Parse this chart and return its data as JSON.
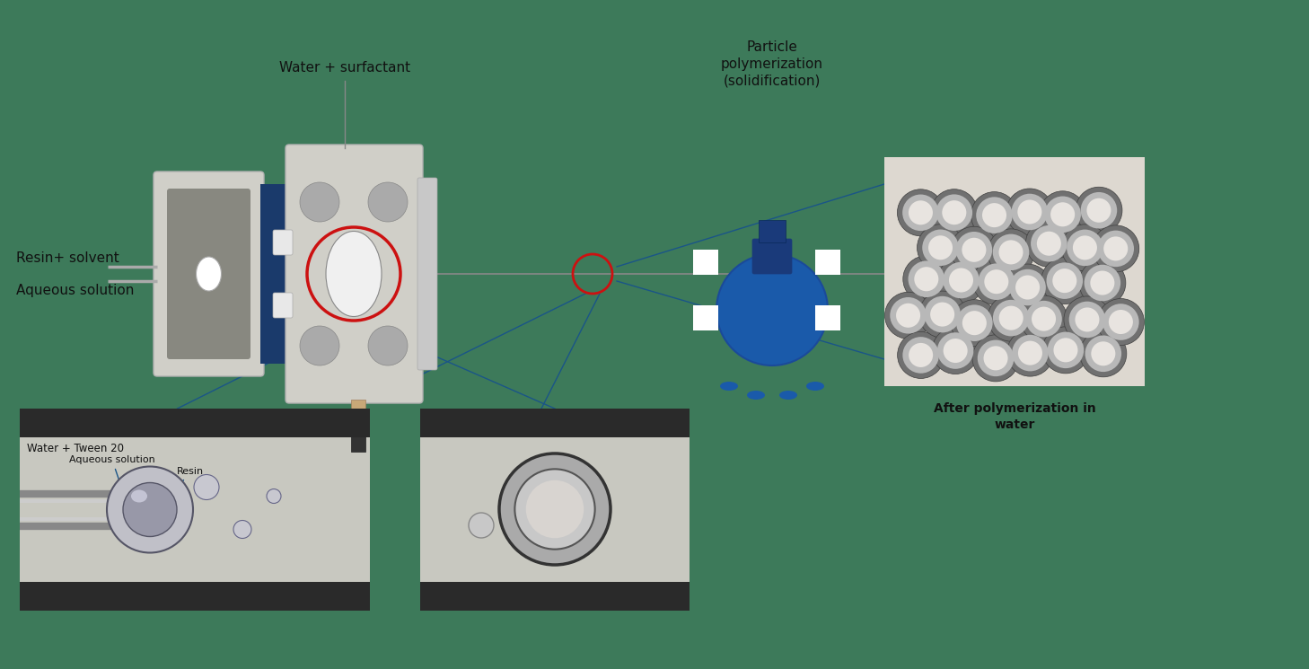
{
  "bg_color": "#3d7a5a",
  "labels": {
    "resin_solvent": "Resin+ solvent",
    "aqueous_solution": "Aqueous solution",
    "water_surfactant": "Water + surfactant",
    "particle_polymerization": "Particle\npolymerization\n(solidification)",
    "after_polymerization": "After polymerization in\nwater",
    "water_tween": "Water + Tween 20",
    "aqueous_label": "Aqueous solution",
    "resin_label": "Resin"
  },
  "colors": {
    "device_body": "#d0cfc8",
    "device_dark": "#7a7a7a",
    "device_blue": "#1a3a6b",
    "red_circle": "#cc1111",
    "blue_line": "#1a5588",
    "bulb_blue": "#1a5aaa",
    "white_square": "#ffffff",
    "text_color": "#111111"
  }
}
